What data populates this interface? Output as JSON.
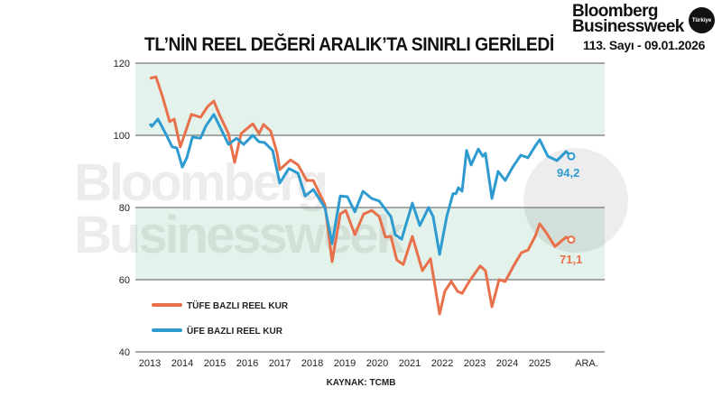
{
  "header": {
    "title": "TL’NİN REEL DEĞERİ ARALIK’TA SINIRLI GERİLEDİ",
    "brand_line1": "Bloomberg",
    "brand_line2": "Businessweek",
    "brand_badge": "Türkiye",
    "issue": "113. Sayı - 09.01.2026"
  },
  "chart_data": {
    "type": "line",
    "title": "TL’NİN REEL DEĞERİ ARALIK’TA SINIRLI GERİLEDİ",
    "source": "KAYNAK: TCMB",
    "ylim": [
      40,
      120
    ],
    "yticks": [
      40,
      60,
      80,
      100,
      120
    ],
    "xlim": [
      2013,
      2026
    ],
    "xticks": [
      "2013",
      "2014",
      "2015",
      "2016",
      "2017",
      "2018",
      "2019",
      "2020",
      "2021",
      "2022",
      "2023",
      "2024",
      "2025"
    ],
    "x_end_label": "ARA.",
    "shaded_bands": [
      [
        60,
        80
      ],
      [
        100,
        120
      ]
    ],
    "grid": true,
    "legend_placement": "bottom-left",
    "colors": {
      "tufe": "#e8704a",
      "ufe": "#2e9bd0",
      "band": "#e3f2ea"
    },
    "series": [
      {
        "name": "TÜFE BAZLI REEL KUR",
        "end_label": "71,1",
        "x": [
          2013.0,
          2013.19,
          2013.39,
          2013.61,
          2013.75,
          2013.94,
          2014.28,
          2014.56,
          2014.78,
          2014.97,
          2015.14,
          2015.42,
          2015.61,
          2015.81,
          2016.17,
          2016.36,
          2016.5,
          2016.72,
          2016.92,
          2017.0,
          2017.33,
          2017.56,
          2017.83,
          2018.03,
          2018.39,
          2018.61,
          2018.86,
          2019.03,
          2019.31,
          2019.58,
          2019.83,
          2020.06,
          2020.25,
          2020.42,
          2020.6,
          2020.8,
          2021.08,
          2021.39,
          2021.64,
          2021.92,
          2022.08,
          2022.28,
          2022.47,
          2022.61,
          2022.83,
          2023.17,
          2023.33,
          2023.53,
          2023.75,
          2023.94,
          2024.22,
          2024.44,
          2024.64,
          2024.86,
          2025.0,
          2025.19,
          2025.47,
          2025.81,
          2025.97
        ],
        "values": [
          115.8,
          116.2,
          110.8,
          103.8,
          104.5,
          96.8,
          105.8,
          105,
          108,
          109.5,
          105.8,
          100.5,
          92.5,
          100.5,
          103.2,
          100.5,
          103,
          101.2,
          95,
          90.5,
          93.2,
          91.8,
          87.5,
          87.5,
          80.8,
          65,
          78.2,
          79.2,
          72.5,
          78.2,
          79.2,
          77.5,
          71.8,
          72,
          65.5,
          64.2,
          72,
          62.5,
          65.8,
          50.5,
          56.8,
          59.5,
          56.8,
          56.2,
          59.5,
          63.8,
          62.5,
          52.5,
          60,
          59.5,
          64.2,
          67.5,
          68.2,
          72,
          75.5,
          73.2,
          69.2,
          71.8,
          71.1
        ]
      },
      {
        "name": "ÜFE BAZLI REEL KUR",
        "end_label": "94,2",
        "x": [
          2013.0,
          2013.06,
          2013.25,
          2013.47,
          2013.69,
          2013.83,
          2014.0,
          2014.14,
          2014.31,
          2014.56,
          2014.72,
          2014.97,
          2015.19,
          2015.42,
          2015.67,
          2015.89,
          2016.17,
          2016.36,
          2016.53,
          2016.78,
          2017.0,
          2017.28,
          2017.56,
          2017.78,
          2018.03,
          2018.39,
          2018.61,
          2018.86,
          2019.08,
          2019.31,
          2019.56,
          2019.83,
          2020.06,
          2020.42,
          2020.55,
          2020.75,
          2021.08,
          2021.31,
          2021.58,
          2021.72,
          2021.92,
          2022.14,
          2022.33,
          2022.42,
          2022.5,
          2022.61,
          2022.75,
          2022.89,
          2023.11,
          2023.25,
          2023.33,
          2023.53,
          2023.72,
          2023.94,
          2024.17,
          2024.42,
          2024.64,
          2024.86,
          2025.0,
          2025.25,
          2025.53,
          2025.81,
          2025.97
        ],
        "values": [
          103.2,
          102.5,
          104.5,
          100.8,
          96.8,
          96.5,
          91.2,
          93.8,
          99.5,
          99.2,
          102.5,
          105.8,
          101.8,
          97.5,
          99.2,
          97.5,
          100,
          98.2,
          98,
          95.8,
          86.8,
          90.8,
          89.5,
          83.2,
          85,
          80,
          70,
          83.2,
          83,
          78.8,
          84.5,
          82.5,
          81.8,
          77.5,
          72.5,
          71.2,
          81.2,
          75,
          80,
          77.5,
          67,
          77.5,
          83.8,
          83.8,
          85.5,
          84.5,
          95.8,
          91.8,
          96.2,
          94.2,
          95,
          82.5,
          90,
          87.5,
          91.2,
          94.5,
          93.8,
          97,
          98.8,
          94.2,
          93,
          95.5,
          94.2
        ]
      }
    ]
  }
}
